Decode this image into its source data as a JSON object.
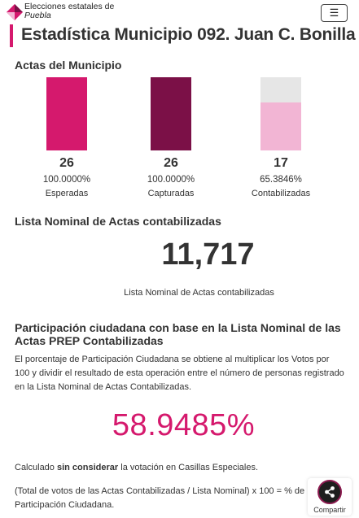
{
  "header": {
    "brand_line1": "Elecciones estatales de",
    "brand_line2": "Puebla",
    "menu_icon": "☰",
    "logo_icon": "diamond-logo-icon"
  },
  "page_title": "Estadística Municipio 092. Juan C. Bonilla",
  "actas": {
    "section_title": "Actas del Municipio",
    "items": [
      {
        "count": "26",
        "percent": "100.0000%",
        "label": "Esperadas",
        "fraction": 1.0,
        "color": "#d5196d"
      },
      {
        "count": "26",
        "percent": "100.0000%",
        "label": "Capturadas",
        "fraction": 1.0,
        "color": "#7b1047"
      },
      {
        "count": "17",
        "percent": "65.3846%",
        "label": "Contabilizadas",
        "fraction": 0.653846,
        "color": "#f2b5d4"
      }
    ]
  },
  "lista_nominal": {
    "section_title": "Lista Nominal de Actas contabilizadas",
    "value": "11,717",
    "caption": "Lista Nominal de Actas contabilizadas"
  },
  "participacion": {
    "title": "Participación ciudadana con base en la Lista Nominal de las Actas PREP Contabilizadas",
    "description": "El porcentaje de Participación Ciudadana se obtiene al multiplicar los Votos por 100 y dividir el resultado de esta operación entre el número de personas registrado en la Lista Nominal de Actas Contabilizadas.",
    "percent": "58.9485%",
    "note_pre": "Calculado ",
    "note_bold": "sin considerar",
    "note_post": " la votación en Casillas Especiales.",
    "formula": "(Total de votos de las Actas Contabilizadas / Lista Nominal) x 100 = % de Participación Ciudadana."
  },
  "share": {
    "label": "Compartir",
    "icon": "share-icon"
  },
  "colors": {
    "accent": "#d5196d",
    "dark_accent": "#7b1047",
    "light_accent": "#f2b5d4"
  }
}
